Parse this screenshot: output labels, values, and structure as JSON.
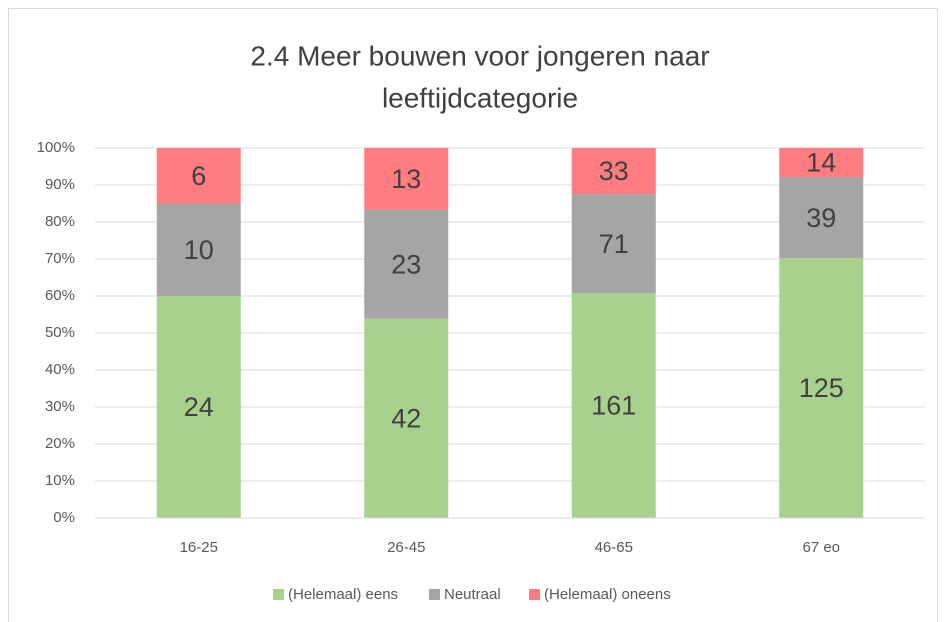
{
  "chart_data": {
    "type": "bar",
    "stack": "percent",
    "title": [
      "2.4  Meer bouwen voor jongeren naar",
      "leeftijdcategorie"
    ],
    "categories": [
      "16-25",
      "26-45",
      "46-65",
      "67 eo"
    ],
    "series": [
      {
        "name": "(Helemaal) eens",
        "color": "#a9d18e",
        "values": [
          24,
          42,
          161,
          125
        ]
      },
      {
        "name": "Neutraal",
        "color": "#a5a5a5",
        "values": [
          10,
          23,
          71,
          39
        ]
      },
      {
        "name": "(Helemaal) oneens",
        "color": "#ff7c80",
        "values": [
          6,
          13,
          33,
          14
        ]
      }
    ],
    "ylim": [
      0,
      100
    ],
    "yticks": [
      {
        "value": 0,
        "label": "0%"
      },
      {
        "value": 10,
        "label": "10%"
      },
      {
        "value": 20,
        "label": "20%"
      },
      {
        "value": 30,
        "label": "30%"
      },
      {
        "value": 40,
        "label": "40%"
      },
      {
        "value": 50,
        "label": "50%"
      },
      {
        "value": 60,
        "label": "60%"
      },
      {
        "value": 70,
        "label": "70%"
      },
      {
        "value": 80,
        "label": "80%"
      },
      {
        "value": 90,
        "label": "90%"
      },
      {
        "value": 100,
        "label": "100%"
      }
    ],
    "grid": true,
    "legend": "bottom"
  }
}
